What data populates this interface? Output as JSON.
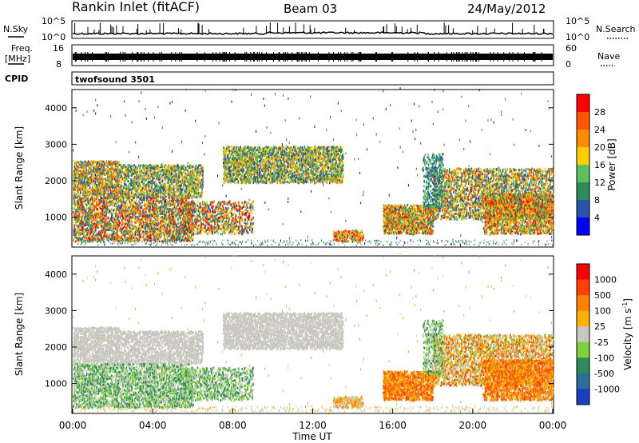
{
  "header": {
    "station": "Rankin Inlet (fitACF)",
    "beam": "Beam 03",
    "date": "24/May/2012"
  },
  "nsky_panel": {
    "left_label": "N.Sky",
    "right_label": "N.Search",
    "left_ticks": [
      "10^5",
      "10^0"
    ],
    "right_ticks": [
      "10^5",
      "10^0"
    ],
    "right_legend_style": "dotted"
  },
  "freq_panel": {
    "left_label_line1": "Freq.",
    "left_label_line2": "[MHz]",
    "left_ticks": [
      "16",
      "8"
    ],
    "right_label": "Nave",
    "right_ticks": [
      "60",
      "0"
    ],
    "right_legend_style": "dotted"
  },
  "cpid_panel": {
    "label": "CPID",
    "program": "twofsound 3501"
  },
  "chart_data": [
    {
      "type": "heatmap",
      "name": "power",
      "xlabel": "",
      "ylabel": "Slant Range [km]",
      "xlim": [
        "00:00",
        "24:00"
      ],
      "ylim": [
        180,
        4500
      ],
      "y_ticks": [
        "1000",
        "2000",
        "3000",
        "4000"
      ],
      "colorbar": {
        "label": "Power [dB]",
        "ticks": [
          "4",
          "8",
          "12",
          "16",
          "20",
          "24",
          "28"
        ],
        "colors": [
          "#0000ff",
          "#2a52a8",
          "#2e8b57",
          "#5fbf5f",
          "#ffd000",
          "#ff8c00",
          "#ff5500",
          "#ff0000"
        ]
      }
    },
    {
      "type": "heatmap",
      "name": "velocity",
      "xlabel": "Time UT",
      "ylabel": "Slant Range [km]",
      "xlim": [
        "00:00",
        "24:00"
      ],
      "ylim": [
        180,
        4500
      ],
      "x_ticks": [
        "00:00",
        "04:00",
        "08:00",
        "12:00",
        "16:00",
        "20:00",
        "00:00"
      ],
      "y_ticks": [
        "1000",
        "2000",
        "3000",
        "4000"
      ],
      "colorbar": {
        "label": "Velocity [m s",
        "label_superscript": "-1",
        "label_close": "]",
        "ticks": [
          "1000",
          "500",
          "100",
          "25",
          "-25",
          "-100",
          "-500",
          "-1000"
        ],
        "colors": [
          "#1a3fbf",
          "#2a6f9f",
          "#2e8b57",
          "#7fd13b",
          "#c8c8c0",
          "#ffb000",
          "#ff8000",
          "#ff4000",
          "#ff0000"
        ]
      }
    }
  ]
}
